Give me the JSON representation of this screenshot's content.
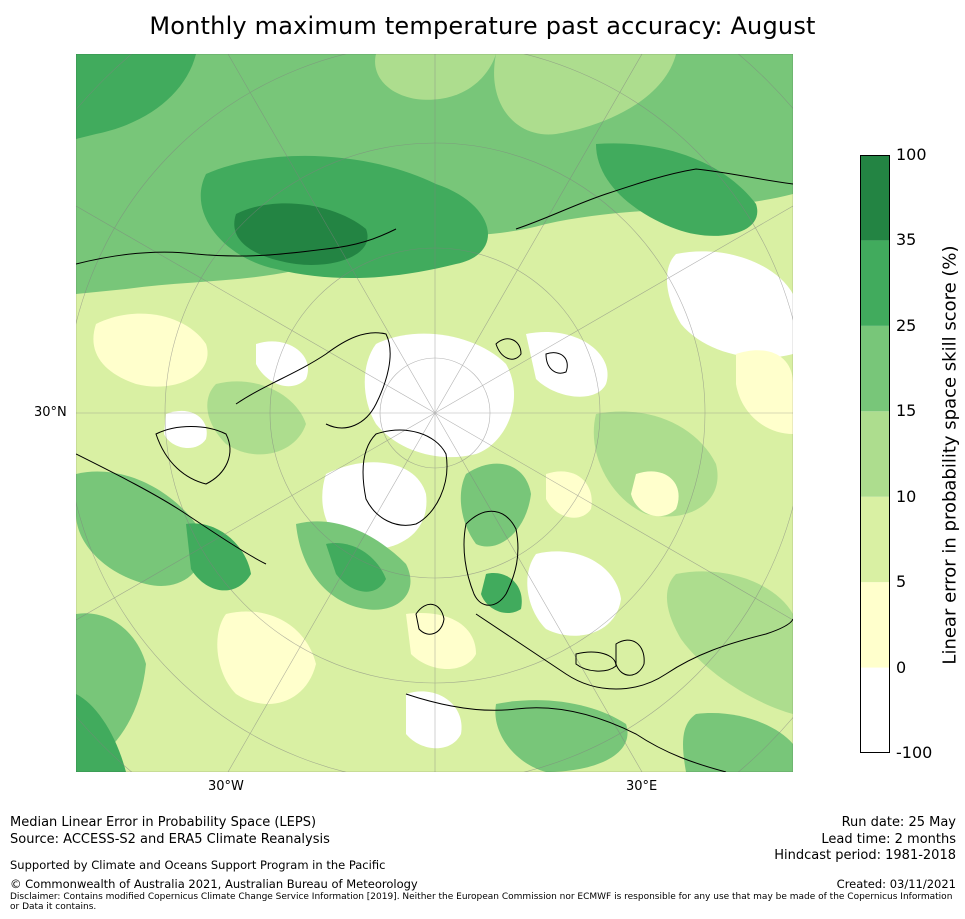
{
  "title": "Monthly maximum temperature past accuracy: August",
  "map": {
    "projection": "north-polar-stereographic",
    "land_outline_color": "#000000",
    "graticule_color": "#808080",
    "lat_label": "30°N",
    "lon_labels": [
      "30°W",
      "30°E"
    ]
  },
  "colorbar": {
    "label": "Linear error in probability space skill score (%)",
    "ticks": [
      "100",
      "35",
      "25",
      "15",
      "10",
      "5",
      "0",
      "-100"
    ],
    "bins": [
      {
        "from": -100,
        "to": 0,
        "color": "#ffffff"
      },
      {
        "from": 0,
        "to": 5,
        "color": "#ffffcc"
      },
      {
        "from": 5,
        "to": 10,
        "color": "#d9f0a3"
      },
      {
        "from": 10,
        "to": 15,
        "color": "#addd8e"
      },
      {
        "from": 15,
        "to": 25,
        "color": "#78c679"
      },
      {
        "from": 25,
        "to": 35,
        "color": "#41ab5d"
      },
      {
        "from": 35,
        "to": 100,
        "color": "#238443"
      }
    ]
  },
  "footer": {
    "left_line1": "Median Linear Error in Probability Space (LEPS)",
    "left_line2": "Source: ACCESS-S2 and ERA5 Climate Reanalysis",
    "supported": "Supported by Climate and Oceans Support Program in the Pacific",
    "copyright": "© Commonwealth of Australia 2021, Australian Bureau of Meteorology",
    "disclaimer": "Disclaimer: Contains modified Copernicus Climate Change Service Information [2019]. Neither the European Commission nor ECMWF is responsible for any use that may be made of the Copernicus Information or Data it contains.",
    "run_date": "Run date: 25 May",
    "lead_time": "Lead time: 2 months",
    "hindcast": "Hindcast period: 1981-2018",
    "created": "Created: 03/11/2021"
  }
}
